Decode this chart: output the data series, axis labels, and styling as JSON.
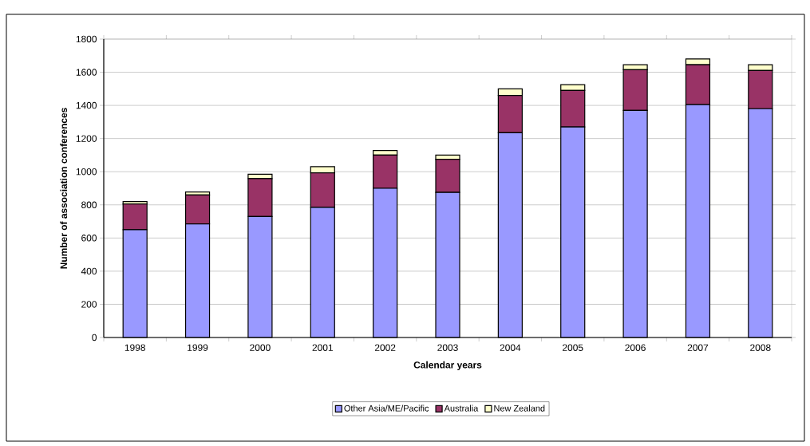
{
  "chart_data": {
    "type": "bar",
    "stacked": true,
    "xlabel": "Calendar years",
    "ylabel": "Number of association conferences",
    "categories": [
      "1998",
      "1999",
      "2000",
      "2001",
      "2002",
      "2003",
      "2004",
      "2005",
      "2006",
      "2007",
      "2008"
    ],
    "series": [
      {
        "name": "Other Asia/ME/Pacific",
        "color": "#9999ff",
        "values": [
          650,
          685,
          730,
          785,
          900,
          875,
          1235,
          1270,
          1370,
          1405,
          1380
        ]
      },
      {
        "name": "Australia",
        "color": "#993366",
        "values": [
          155,
          175,
          228,
          208,
          200,
          200,
          225,
          220,
          245,
          240,
          230
        ]
      },
      {
        "name": "New Zealand",
        "color": "#ffffcc",
        "values": [
          15,
          18,
          27,
          37,
          28,
          25,
          40,
          35,
          30,
          35,
          35
        ]
      }
    ],
    "ylim": [
      0,
      1800
    ],
    "yticks": [
      0,
      200,
      400,
      600,
      800,
      1000,
      1200,
      1400,
      1600,
      1800
    ],
    "grid": "y",
    "legend": "bottom"
  }
}
